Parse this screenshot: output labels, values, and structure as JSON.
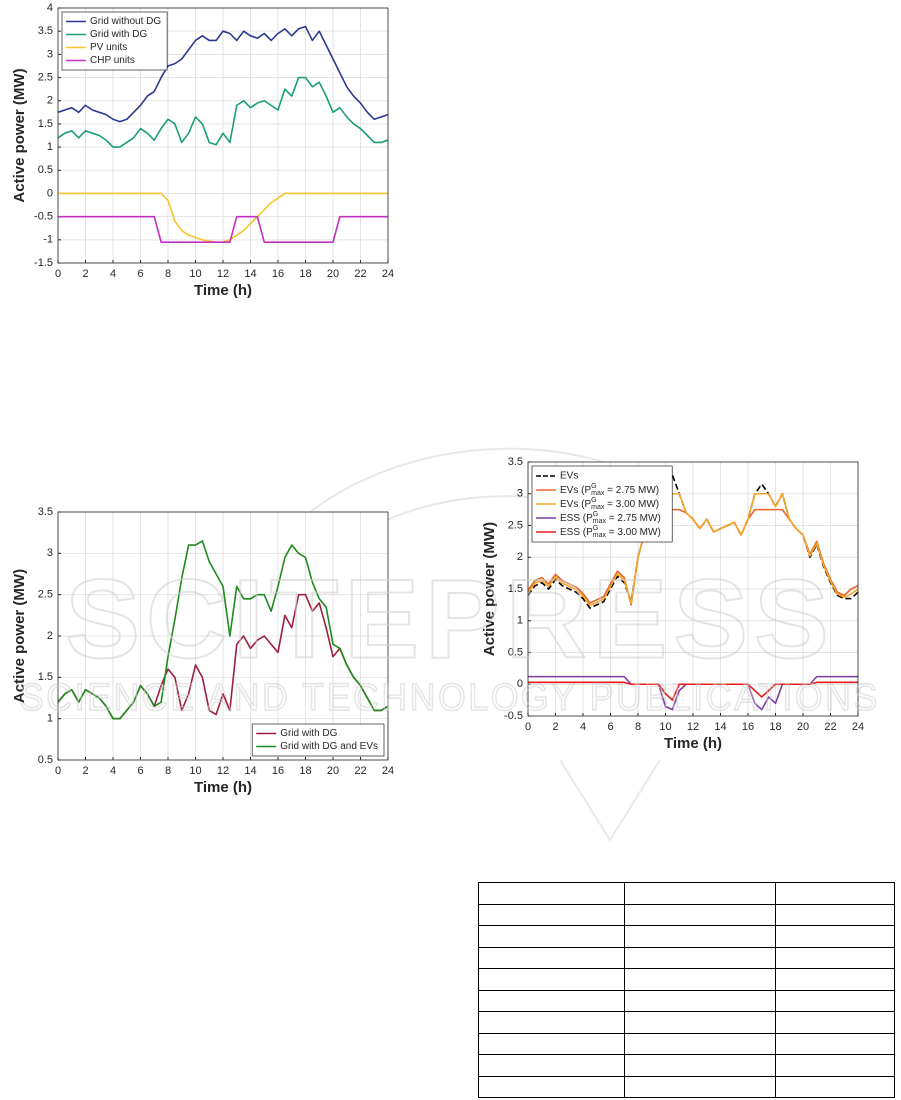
{
  "chart_data": [
    {
      "type": "line",
      "xlabel": "Time (h)",
      "ylabel": "Active power (MW)",
      "x": [
        0,
        0.5,
        1,
        1.5,
        2,
        2.5,
        3,
        3.5,
        4,
        4.5,
        5,
        5.5,
        6,
        6.5,
        7,
        7.5,
        8,
        8.5,
        9,
        9.5,
        10,
        10.5,
        11,
        11.5,
        12,
        12.5,
        13,
        13.5,
        14,
        14.5,
        15,
        15.5,
        16,
        16.5,
        17,
        17.5,
        18,
        18.5,
        19,
        19.5,
        20,
        20.5,
        21,
        21.5,
        22,
        22.5,
        23,
        23.5,
        24
      ],
      "xlim": [
        0,
        24
      ],
      "xticks": [
        0,
        2,
        4,
        6,
        8,
        10,
        12,
        14,
        16,
        18,
        20,
        22,
        24
      ],
      "ylim": [
        -1.5,
        4
      ],
      "yticks": [
        -1.5,
        -1,
        -0.5,
        0,
        0.5,
        1,
        1.5,
        2,
        2.5,
        3,
        3.5,
        4
      ],
      "grid": true,
      "legend": "upper left",
      "series": [
        {
          "name": "Grid without DG",
          "color": "#2b3990",
          "values": [
            1.75,
            1.8,
            1.85,
            1.75,
            1.9,
            1.8,
            1.75,
            1.7,
            1.6,
            1.55,
            1.6,
            1.75,
            1.9,
            2.1,
            2.2,
            2.5,
            2.75,
            2.8,
            2.9,
            3.1,
            3.3,
            3.4,
            3.3,
            3.3,
            3.5,
            3.45,
            3.3,
            3.5,
            3.4,
            3.35,
            3.45,
            3.3,
            3.45,
            3.55,
            3.4,
            3.55,
            3.6,
            3.3,
            3.5,
            3.2,
            2.9,
            2.6,
            2.3,
            2.1,
            1.95,
            1.75,
            1.6,
            1.65,
            1.7
          ]
        },
        {
          "name": "Grid with DG",
          "color": "#1b9e77",
          "values": [
            1.2,
            1.3,
            1.35,
            1.2,
            1.35,
            1.3,
            1.25,
            1.15,
            1.0,
            1.0,
            1.1,
            1.2,
            1.4,
            1.3,
            1.15,
            1.4,
            1.6,
            1.5,
            1.1,
            1.3,
            1.65,
            1.5,
            1.1,
            1.05,
            1.3,
            1.1,
            1.9,
            2.0,
            1.85,
            1.95,
            2.0,
            1.9,
            1.8,
            2.25,
            2.1,
            2.5,
            2.5,
            2.3,
            2.4,
            2.1,
            1.75,
            1.85,
            1.65,
            1.5,
            1.4,
            1.25,
            1.1,
            1.1,
            1.15
          ]
        },
        {
          "name": "PV units",
          "color": "#f7c52a",
          "values": [
            0,
            0,
            0,
            0,
            0,
            0,
            0,
            0,
            0,
            0,
            0,
            0,
            0,
            0,
            0,
            0,
            -0.15,
            -0.6,
            -0.8,
            -0.9,
            -0.95,
            -1.0,
            -1.03,
            -1.05,
            -1.05,
            -1.0,
            -0.9,
            -0.8,
            -0.65,
            -0.5,
            -0.35,
            -0.2,
            -0.1,
            0,
            0,
            0,
            0,
            0,
            0,
            0,
            0,
            0,
            0,
            0,
            0,
            0,
            0,
            0,
            0
          ]
        },
        {
          "name": "CHP units",
          "color": "#c42fc4",
          "values": [
            -0.5,
            -0.5,
            -0.5,
            -0.5,
            -0.5,
            -0.5,
            -0.5,
            -0.5,
            -0.5,
            -0.5,
            -0.5,
            -0.5,
            -0.5,
            -0.5,
            -0.5,
            -1.05,
            -1.05,
            -1.05,
            -1.05,
            -1.05,
            -1.05,
            -1.05,
            -1.05,
            -1.05,
            -1.05,
            -1.05,
            -0.5,
            -0.5,
            -0.5,
            -0.5,
            -1.05,
            -1.05,
            -1.05,
            -1.05,
            -1.05,
            -1.05,
            -1.05,
            -1.05,
            -1.05,
            -1.05,
            -1.05,
            -0.5,
            -0.5,
            -0.5,
            -0.5,
            -0.5,
            -0.5,
            -0.5,
            -0.5
          ]
        }
      ]
    },
    {
      "type": "line",
      "xlabel": "Time (h)",
      "ylabel": "Active power (MW)",
      "x": [
        0,
        0.5,
        1,
        1.5,
        2,
        2.5,
        3,
        3.5,
        4,
        4.5,
        5,
        5.5,
        6,
        6.5,
        7,
        7.5,
        8,
        8.5,
        9,
        9.5,
        10,
        10.5,
        11,
        11.5,
        12,
        12.5,
        13,
        13.5,
        14,
        14.5,
        15,
        15.5,
        16,
        16.5,
        17,
        17.5,
        18,
        18.5,
        19,
        19.5,
        20,
        20.5,
        21,
        21.5,
        22,
        22.5,
        23,
        23.5,
        24
      ],
      "xlim": [
        0,
        24
      ],
      "xticks": [
        0,
        2,
        4,
        6,
        8,
        10,
        12,
        14,
        16,
        18,
        20,
        22,
        24
      ],
      "ylim": [
        0.5,
        3.5
      ],
      "yticks": [
        0.5,
        1,
        1.5,
        2,
        2.5,
        3,
        3.5
      ],
      "grid": true,
      "legend": "lower right",
      "series": [
        {
          "name": "Grid with DG",
          "color": "#9e1f3f",
          "values": [
            1.2,
            1.3,
            1.35,
            1.2,
            1.35,
            1.3,
            1.25,
            1.15,
            1.0,
            1.0,
            1.1,
            1.2,
            1.4,
            1.3,
            1.15,
            1.4,
            1.6,
            1.5,
            1.1,
            1.3,
            1.65,
            1.5,
            1.1,
            1.05,
            1.3,
            1.1,
            1.9,
            2.0,
            1.85,
            1.95,
            2.0,
            1.9,
            1.8,
            2.25,
            2.1,
            2.5,
            2.5,
            2.3,
            2.4,
            2.1,
            1.75,
            1.85,
            1.65,
            1.5,
            1.4,
            1.25,
            1.1,
            1.1,
            1.15
          ]
        },
        {
          "name": "Grid with DG and EVs",
          "color": "#1e8a1e",
          "values": [
            1.2,
            1.3,
            1.35,
            1.2,
            1.35,
            1.3,
            1.25,
            1.15,
            1.0,
            1.0,
            1.1,
            1.2,
            1.4,
            1.3,
            1.15,
            1.2,
            1.75,
            2.2,
            2.7,
            3.1,
            3.1,
            3.15,
            2.9,
            2.75,
            2.6,
            2.0,
            2.6,
            2.45,
            2.45,
            2.5,
            2.5,
            2.3,
            2.6,
            2.95,
            3.1,
            3.0,
            2.95,
            2.65,
            2.45,
            2.35,
            1.9,
            1.85,
            1.65,
            1.5,
            1.4,
            1.25,
            1.1,
            1.1,
            1.15
          ]
        }
      ]
    },
    {
      "type": "line",
      "xlabel": "Time (h)",
      "ylabel": "Active power (MW)",
      "x": [
        0,
        0.5,
        1,
        1.5,
        2,
        2.5,
        3,
        3.5,
        4,
        4.5,
        5,
        5.5,
        6,
        6.5,
        7,
        7.5,
        8,
        8.5,
        9,
        9.5,
        10,
        10.5,
        11,
        11.5,
        12,
        12.5,
        13,
        13.5,
        14,
        14.5,
        15,
        15.5,
        16,
        16.5,
        17,
        17.5,
        18,
        18.5,
        19,
        19.5,
        20,
        20.5,
        21,
        21.5,
        22,
        22.5,
        23,
        23.5,
        24
      ],
      "xlim": [
        0,
        24
      ],
      "xticks": [
        0,
        2,
        4,
        6,
        8,
        10,
        12,
        14,
        16,
        18,
        20,
        22,
        24
      ],
      "ylim": [
        -0.5,
        3.5
      ],
      "yticks": [
        -0.5,
        0,
        0.5,
        1,
        1.5,
        2,
        2.5,
        3,
        3.5
      ],
      "grid": true,
      "legend": "upper left",
      "series": [
        {
          "name": "EVs",
          "color": "#000000",
          "dash": true,
          "values": [
            1.4,
            1.55,
            1.6,
            1.5,
            1.65,
            1.55,
            1.5,
            1.45,
            1.35,
            1.2,
            1.25,
            1.3,
            1.5,
            1.7,
            1.6,
            1.3,
            2.0,
            2.4,
            2.75,
            3.1,
            3.2,
            3.3,
            3.0,
            2.7,
            2.6,
            2.45,
            2.6,
            2.4,
            2.45,
            2.5,
            2.55,
            2.35,
            2.6,
            3.0,
            3.15,
            3.0,
            2.8,
            3.0,
            2.6,
            2.45,
            2.35,
            2.0,
            2.2,
            1.85,
            1.6,
            1.4,
            1.35,
            1.35,
            1.45
          ]
        },
        {
          "name": {
            "text": "EVs (P",
            "sup": "G",
            "sub": "max",
            "rest": " = 2.75 MW)"
          },
          "color": "#e8622c",
          "values": [
            1.48,
            1.63,
            1.68,
            1.58,
            1.73,
            1.63,
            1.58,
            1.53,
            1.43,
            1.28,
            1.33,
            1.38,
            1.58,
            1.78,
            1.68,
            1.25,
            2.0,
            2.4,
            2.7,
            2.75,
            2.75,
            2.75,
            2.75,
            2.7,
            2.6,
            2.45,
            2.6,
            2.4,
            2.45,
            2.5,
            2.55,
            2.35,
            2.6,
            2.75,
            2.75,
            2.75,
            2.75,
            2.75,
            2.6,
            2.45,
            2.35,
            2.05,
            2.25,
            1.9,
            1.65,
            1.45,
            1.4,
            1.5,
            1.55
          ]
        },
        {
          "name": {
            "text": "EVs (P",
            "sup": "G",
            "sub": "max",
            "rest": " = 3.00 MW)"
          },
          "color": "#f5a623",
          "values": [
            1.44,
            1.59,
            1.64,
            1.54,
            1.69,
            1.59,
            1.54,
            1.49,
            1.39,
            1.24,
            1.29,
            1.34,
            1.54,
            1.74,
            1.64,
            1.28,
            2.0,
            2.4,
            2.75,
            3.0,
            3.0,
            3.0,
            3.0,
            2.7,
            2.6,
            2.45,
            2.6,
            2.4,
            2.45,
            2.5,
            2.55,
            2.35,
            2.6,
            3.0,
            3.0,
            3.0,
            2.8,
            3.0,
            2.6,
            2.45,
            2.35,
            2.02,
            2.22,
            1.87,
            1.62,
            1.42,
            1.37,
            1.42,
            1.5
          ]
        },
        {
          "name": {
            "text": "ESS (P",
            "sup": "G",
            "sub": "max",
            "rest": " = 2.75 MW)"
          },
          "color": "#7b3fa0",
          "values": [
            0.12,
            0.12,
            0.12,
            0.12,
            0.12,
            0.12,
            0.12,
            0.12,
            0.12,
            0.12,
            0.12,
            0.12,
            0.12,
            0.12,
            0.12,
            0,
            0,
            0,
            0,
            0,
            -0.35,
            -0.4,
            -0.1,
            0,
            0,
            0,
            0,
            0,
            0,
            0,
            0,
            0,
            0,
            -0.3,
            -0.4,
            -0.2,
            -0.3,
            0,
            0,
            0,
            0,
            0,
            0.12,
            0.12,
            0.12,
            0.12,
            0.12,
            0.12,
            0.12
          ]
        },
        {
          "name": {
            "text": "ESS (P",
            "sup": "G",
            "sub": "max",
            "rest": " = 3.00 MW)"
          },
          "color": "#e81c1c",
          "values": [
            0.03,
            0.03,
            0.03,
            0.03,
            0.03,
            0.03,
            0.03,
            0.03,
            0.03,
            0.03,
            0.03,
            0.03,
            0.03,
            0.03,
            0.03,
            0,
            0,
            0,
            0,
            0,
            -0.15,
            -0.25,
            0,
            0,
            0,
            0,
            0,
            0,
            0,
            0,
            0,
            0,
            0,
            -0.1,
            -0.2,
            -0.1,
            0,
            0,
            0,
            0,
            0,
            0,
            0.03,
            0.03,
            0.03,
            0.03,
            0.03,
            0.03,
            0.03
          ]
        }
      ]
    }
  ],
  "watermark": {
    "title": "SCITEPRESS",
    "subtitle": "SCIENCE AND TECHNOLOGY PUBLICATIONS"
  }
}
